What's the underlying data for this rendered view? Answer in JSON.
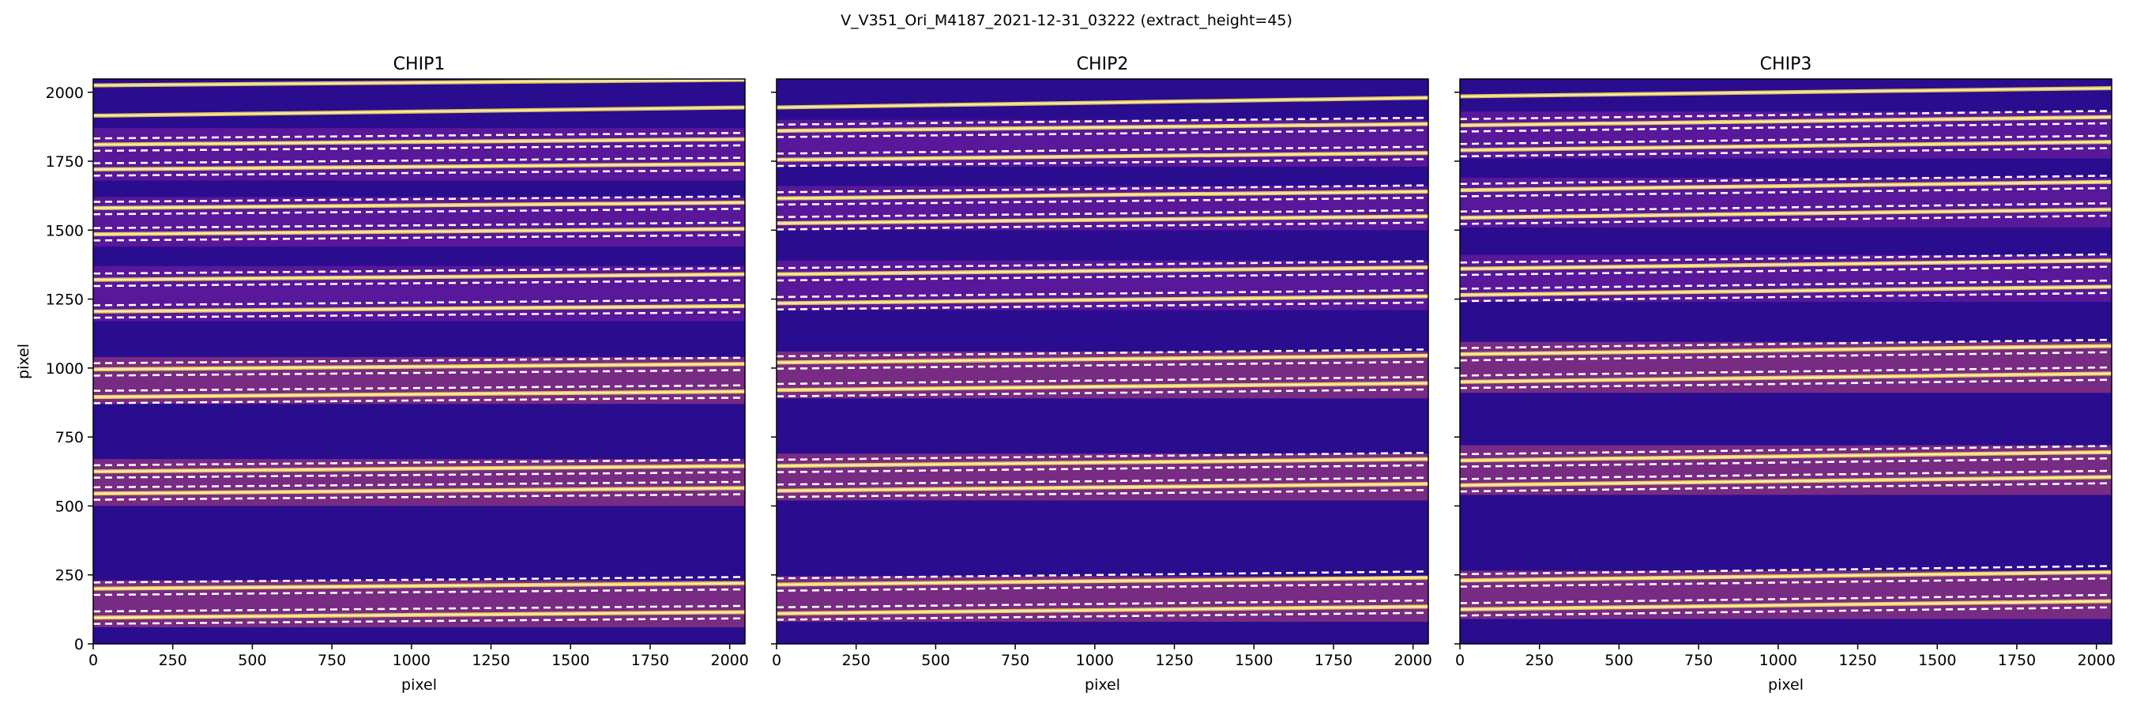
{
  "chart_data": {
    "type": "heatmap",
    "suptitle": "V_V351_Ori_M4187_2021-12-31_03222  (extract_height=45)",
    "xlim": [
      0,
      2048
    ],
    "ylim": [
      0,
      2048
    ],
    "xticks": [
      0,
      250,
      500,
      750,
      1000,
      1250,
      1500,
      1750,
      2000
    ],
    "yticks": [
      0,
      250,
      500,
      750,
      1000,
      1250,
      1500,
      1750,
      2000
    ],
    "xlabel": "pixel",
    "ylabel": "pixel",
    "colormap": "plasma",
    "colors": {
      "background": "#2a0c8f",
      "band": "#7a1fa2",
      "band_dense": "#b8457a",
      "trace": "#fde74a",
      "trace_core": "#ffffff",
      "extraction_line": "#ffffff"
    },
    "panels": [
      {
        "title": "CHIP1",
        "bands": [
          {
            "lo": 60,
            "hi": 230,
            "dense": true
          },
          {
            "lo": 500,
            "hi": 670,
            "dense": true
          },
          {
            "lo": 870,
            "hi": 1040,
            "dense": true
          },
          {
            "lo": 1170,
            "hi": 1370,
            "dense": false
          },
          {
            "lo": 1440,
            "hi": 1620,
            "dense": false
          },
          {
            "lo": 1680,
            "hi": 1870,
            "dense": false
          }
        ],
        "traces": [
          {
            "y0": 95,
            "slope": 20,
            "extraction": true
          },
          {
            "y0": 200,
            "slope": 20,
            "extraction": true
          },
          {
            "y0": 545,
            "slope": 20,
            "extraction": true
          },
          {
            "y0": 625,
            "slope": 20,
            "extraction": true
          },
          {
            "y0": 895,
            "slope": 20,
            "extraction": true
          },
          {
            "y0": 995,
            "slope": 20,
            "extraction": true
          },
          {
            "y0": 1205,
            "slope": 20,
            "extraction": true
          },
          {
            "y0": 1320,
            "slope": 20,
            "extraction": true
          },
          {
            "y0": 1485,
            "slope": 20,
            "extraction": true
          },
          {
            "y0": 1580,
            "slope": 20,
            "extraction": true
          },
          {
            "y0": 1720,
            "slope": 20,
            "extraction": true
          },
          {
            "y0": 1810,
            "slope": 20,
            "extraction": true
          },
          {
            "y0": 1915,
            "slope": 30,
            "extraction": false
          },
          {
            "y0": 2025,
            "slope": 20,
            "extraction": false
          }
        ]
      },
      {
        "title": "CHIP2",
        "bands": [
          {
            "lo": 80,
            "hi": 245,
            "dense": true
          },
          {
            "lo": 520,
            "hi": 690,
            "dense": true
          },
          {
            "lo": 890,
            "hi": 1060,
            "dense": true
          },
          {
            "lo": 1210,
            "hi": 1390,
            "dense": false
          },
          {
            "lo": 1500,
            "hi": 1660,
            "dense": false
          },
          {
            "lo": 1730,
            "hi": 1900,
            "dense": false
          }
        ],
        "traces": [
          {
            "y0": 110,
            "slope": 25,
            "extraction": true
          },
          {
            "y0": 215,
            "slope": 25,
            "extraction": true
          },
          {
            "y0": 555,
            "slope": 25,
            "extraction": true
          },
          {
            "y0": 645,
            "slope": 25,
            "extraction": true
          },
          {
            "y0": 920,
            "slope": 25,
            "extraction": true
          },
          {
            "y0": 1020,
            "slope": 25,
            "extraction": true
          },
          {
            "y0": 1235,
            "slope": 25,
            "extraction": true
          },
          {
            "y0": 1340,
            "slope": 25,
            "extraction": true
          },
          {
            "y0": 1525,
            "slope": 25,
            "extraction": true
          },
          {
            "y0": 1615,
            "slope": 25,
            "extraction": true
          },
          {
            "y0": 1755,
            "slope": 25,
            "extraction": true
          },
          {
            "y0": 1860,
            "slope": 25,
            "extraction": true
          },
          {
            "y0": 1945,
            "slope": 35,
            "extraction": false
          }
        ]
      },
      {
        "title": "CHIP3",
        "bands": [
          {
            "lo": 90,
            "hi": 265,
            "dense": true
          },
          {
            "lo": 540,
            "hi": 720,
            "dense": true
          },
          {
            "lo": 910,
            "hi": 1095,
            "dense": true
          },
          {
            "lo": 1240,
            "hi": 1410,
            "dense": false
          },
          {
            "lo": 1510,
            "hi": 1690,
            "dense": false
          },
          {
            "lo": 1760,
            "hi": 1930,
            "dense": false
          }
        ],
        "traces": [
          {
            "y0": 125,
            "slope": 30,
            "extraction": true
          },
          {
            "y0": 230,
            "slope": 30,
            "extraction": true
          },
          {
            "y0": 575,
            "slope": 30,
            "extraction": true
          },
          {
            "y0": 665,
            "slope": 30,
            "extraction": true
          },
          {
            "y0": 950,
            "slope": 30,
            "extraction": true
          },
          {
            "y0": 1050,
            "slope": 30,
            "extraction": true
          },
          {
            "y0": 1265,
            "slope": 30,
            "extraction": true
          },
          {
            "y0": 1360,
            "slope": 30,
            "extraction": true
          },
          {
            "y0": 1545,
            "slope": 30,
            "extraction": true
          },
          {
            "y0": 1645,
            "slope": 30,
            "extraction": true
          },
          {
            "y0": 1790,
            "slope": 30,
            "extraction": true
          },
          {
            "y0": 1880,
            "slope": 30,
            "extraction": true
          },
          {
            "y0": 1985,
            "slope": 30,
            "extraction": false
          }
        ]
      }
    ]
  }
}
